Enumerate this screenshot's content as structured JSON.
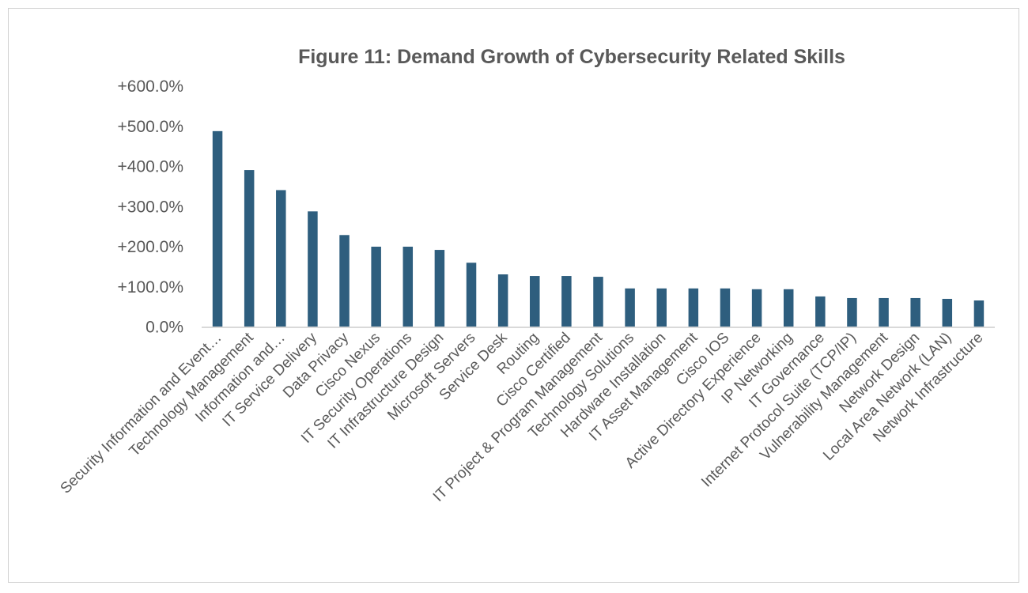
{
  "chart_data": {
    "type": "bar",
    "title": "Figure 11: Demand Growth of Cybersecurity Related Skills",
    "xlabel": "",
    "ylabel": "",
    "ylim": [
      0,
      600
    ],
    "yticks": [
      0,
      100,
      200,
      300,
      400,
      500,
      600
    ],
    "ytick_labels": [
      "0.0%",
      "+100.0%",
      "+200.0%",
      "+300.0%",
      "+400.0%",
      "+500.0%",
      "+600.0%"
    ],
    "grid": false,
    "bar_color": "#2E5E7E",
    "categories": [
      "Security Information and Event…",
      "Technology Management",
      "Information and…",
      "IT Service Delivery",
      "Data Privacy",
      "Cisco Nexus",
      "IT Security Operations",
      "IT Infrastructure Design",
      "Microsoft Servers",
      "Service Desk",
      "Routing",
      "Cisco Certified",
      "IT Project & Program Management",
      "Technology Solutions",
      "Hardware Installation",
      "IT Asset Management",
      "Cisco IOS",
      "Active Directory Experience",
      "IP Networking",
      "IT Governance",
      "Internet Protocol Suite (TCP/IP)",
      "Vulnerability Management",
      "Network Design",
      "Local Area Network (LAN)",
      "Network Infrastructure"
    ],
    "values": [
      488,
      391,
      341,
      288,
      229,
      200,
      200,
      192,
      160,
      131,
      127,
      127,
      125,
      96,
      96,
      96,
      96,
      94,
      94,
      76,
      72,
      72,
      72,
      70,
      66
    ]
  }
}
